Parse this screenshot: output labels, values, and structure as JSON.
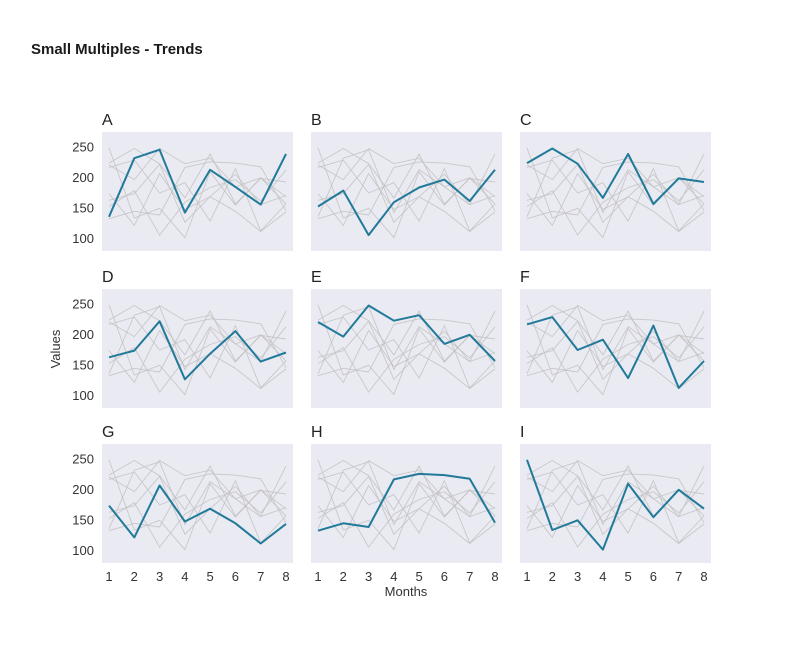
{
  "page": {
    "title": "Small Multiples - Trends"
  },
  "chart_data": {
    "type": "line",
    "title": "Small Multiples - Trends",
    "xlabel": "Months",
    "ylabel": "Values",
    "x": [
      1,
      2,
      3,
      4,
      5,
      6,
      7,
      8
    ],
    "x_tick_labels": [
      "1",
      "2",
      "3",
      "4",
      "5",
      "6",
      "7",
      "8"
    ],
    "y_ticks": [
      100,
      150,
      200,
      250
    ],
    "y_tick_labels": [
      "100",
      "150",
      "200",
      "250"
    ],
    "ylim": [
      80,
      275
    ],
    "grid": false,
    "highlight_color": "#217a9a",
    "context_color": "#c2c2c2",
    "panel_background": "#eaeaf2",
    "series": [
      {
        "name": "A",
        "values": [
          136,
          232,
          246,
          143,
          213,
          185,
          156,
          239
        ]
      },
      {
        "name": "B",
        "values": [
          153,
          179,
          106,
          160,
          184,
          197,
          162,
          213
        ]
      },
      {
        "name": "C",
        "values": [
          224,
          248,
          223,
          167,
          239,
          157,
          199,
          193
        ]
      },
      {
        "name": "D",
        "values": [
          163,
          174,
          222,
          127,
          169,
          206,
          156,
          171
        ]
      },
      {
        "name": "E",
        "values": [
          221,
          197,
          248,
          223,
          232,
          185,
          200,
          157
        ]
      },
      {
        "name": "F",
        "values": [
          217,
          229,
          175,
          192,
          129,
          215,
          113,
          157
        ]
      },
      {
        "name": "G",
        "values": [
          174,
          122,
          207,
          148,
          169,
          145,
          112,
          144
        ]
      },
      {
        "name": "H",
        "values": [
          133,
          145,
          139,
          217,
          226,
          224,
          218,
          146
        ]
      },
      {
        "name": "I",
        "values": [
          249,
          134,
          150,
          102,
          210,
          155,
          200,
          169
        ]
      }
    ]
  }
}
